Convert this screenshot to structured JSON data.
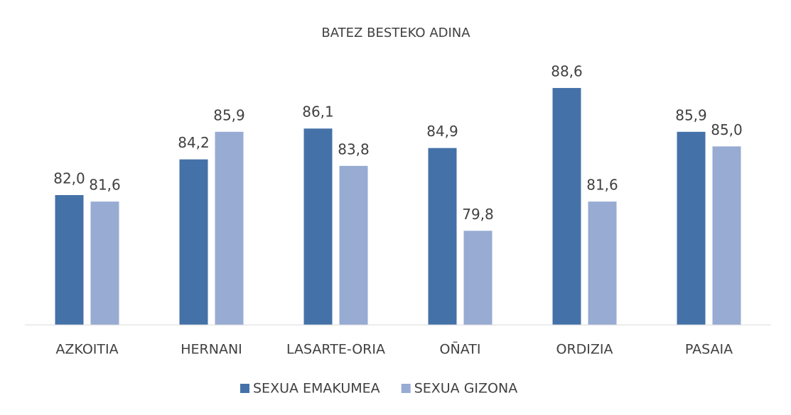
{
  "chart_data": {
    "type": "bar",
    "title": "BATEZ BESTEKO ADINA",
    "categories": [
      "AZKOITIA",
      "HERNANI",
      "LASARTE-ORIA",
      "OÑATI",
      "ORDIZIA",
      "PASAIA"
    ],
    "series": [
      {
        "name": "SEXUA EMAKUMEA",
        "color": "#4472a8",
        "values": [
          82.0,
          84.2,
          86.1,
          84.9,
          88.6,
          85.9
        ],
        "value_labels": [
          "82,0",
          "84,2",
          "86,1",
          "84,9",
          "88,6",
          "85,9"
        ]
      },
      {
        "name": "SEXUA GIZONA",
        "color": "#97abd3",
        "values": [
          81.6,
          85.9,
          83.8,
          79.8,
          81.6,
          85.0
        ],
        "value_labels": [
          "81,6",
          "85,9",
          "83,8",
          "79,8",
          "81,6",
          "85,0"
        ]
      }
    ],
    "ylim": [
      74,
      90
    ],
    "legend": "bottom"
  }
}
